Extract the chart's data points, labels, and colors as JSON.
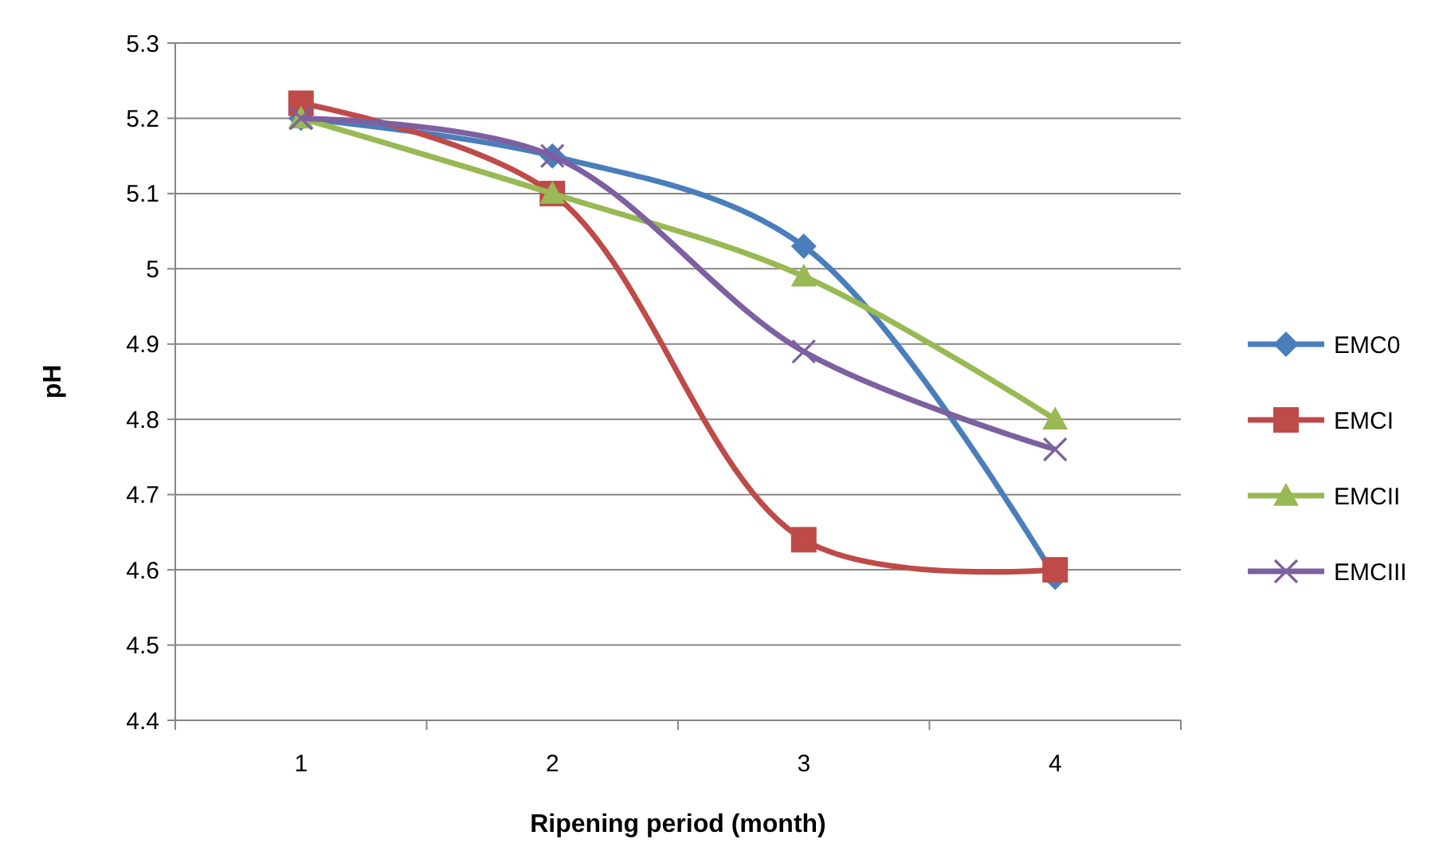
{
  "chart_data": {
    "type": "line",
    "xlabel": "Ripening  period (month)",
    "ylabel": "pH",
    "categories": [
      "1",
      "2",
      "3",
      "4"
    ],
    "series": [
      {
        "name": "EMC0",
        "color": "#4a7ebb",
        "marker": "diamond",
        "values": [
          5.2,
          5.15,
          5.03,
          4.59
        ]
      },
      {
        "name": "EMCI",
        "color": "#be4b48",
        "marker": "square",
        "values": [
          5.22,
          5.1,
          4.64,
          4.6
        ]
      },
      {
        "name": "EMCII",
        "color": "#98b954",
        "marker": "triangle",
        "values": [
          5.2,
          5.1,
          4.99,
          4.8
        ]
      },
      {
        "name": "EMCIII",
        "color": "#7d60a0",
        "marker": "cross",
        "values": [
          5.2,
          5.15,
          4.89,
          4.76
        ]
      }
    ],
    "ylim": [
      4.4,
      5.3
    ],
    "yticks": [
      4.4,
      4.5,
      4.6,
      4.7,
      4.8,
      4.9,
      5,
      5.1,
      5.2,
      5.3
    ],
    "grid": "y",
    "legend": "right",
    "line_style": "solid"
  }
}
